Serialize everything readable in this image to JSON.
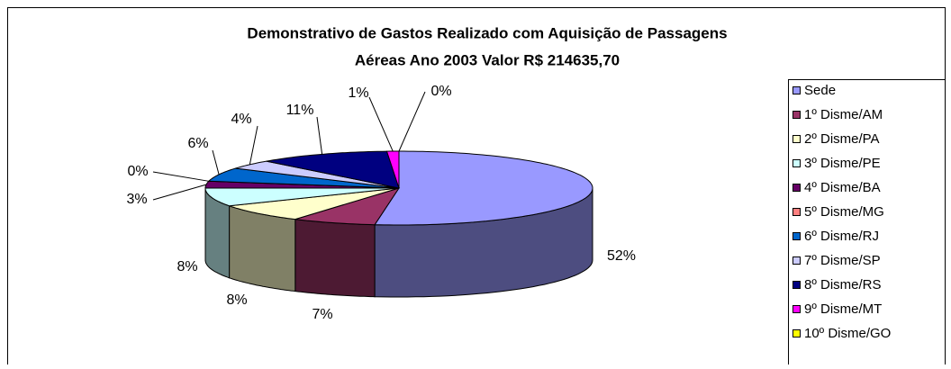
{
  "chart_data": {
    "type": "pie3d",
    "title": [
      "Demonstrativo de Gastos Realizado com Aquisição de Passagens",
      "Aéreas  Ano 2003  Valor R$ 214635,70"
    ],
    "categories": [
      "Sede",
      "1º Disme/AM",
      "2º Disme/PA",
      "3º Disme/PE",
      "4º Disme/BA",
      "5º Disme/MG",
      "6º Disme/RJ",
      "7º Disme/SP",
      "8º Disme/RS",
      "9º Disme/MT",
      "10º Disme/GO"
    ],
    "values": [
      52,
      7,
      8,
      8,
      3,
      0,
      6,
      4,
      11,
      1,
      0
    ],
    "value_labels": [
      "52%",
      "7%",
      "8%",
      "8%",
      "3%",
      "0%",
      "6%",
      "4%",
      "11%",
      "1%",
      "0%"
    ],
    "colors": [
      "#9999ff",
      "#993366",
      "#ffffcc",
      "#ccffff",
      "#660066",
      "#ff8080",
      "#0066cc",
      "#ccccff",
      "#000080",
      "#ff00ff",
      "#ffff00"
    ],
    "legend": "right"
  }
}
